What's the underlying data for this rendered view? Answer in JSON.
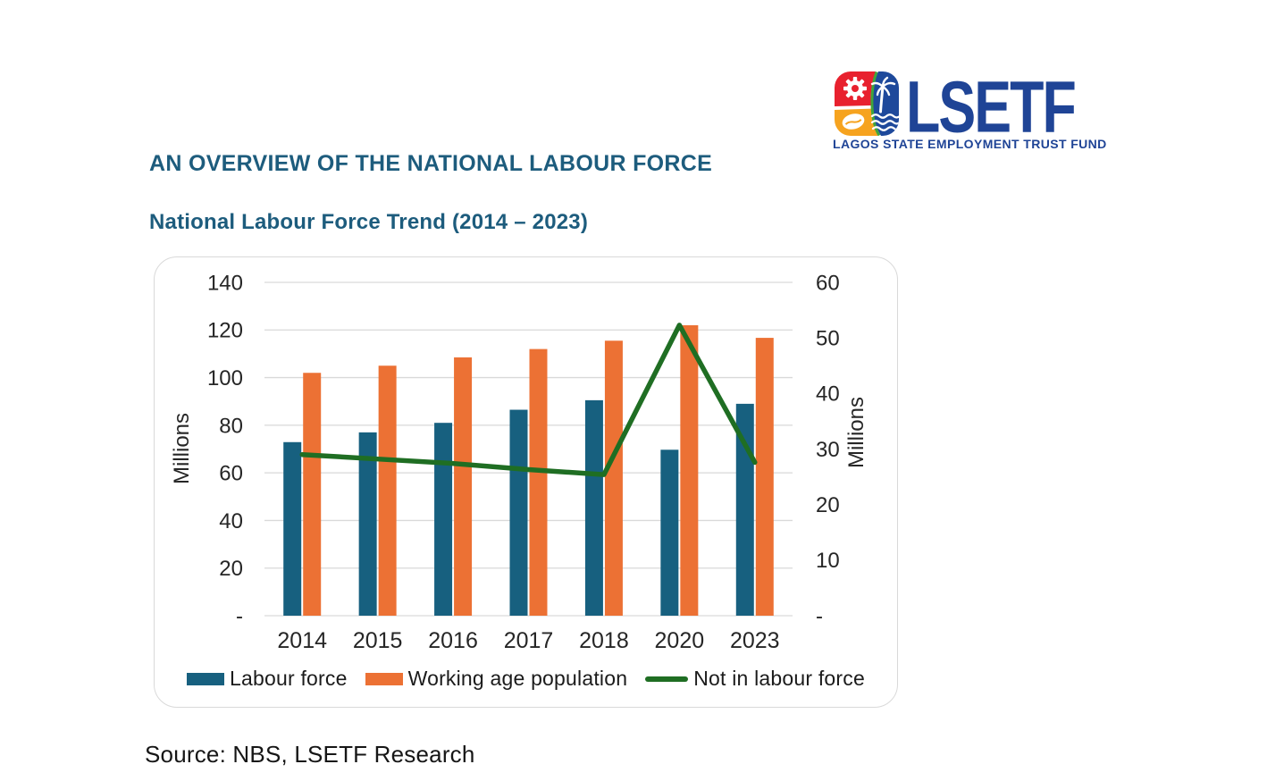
{
  "page": {
    "title": "AN OVERVIEW OF THE NATIONAL LABOUR FORCE",
    "source": "Source: NBS, LSETF Research"
  },
  "logo": {
    "acronym": "LSETF",
    "tagline_part1": "LAGOS STATE ",
    "tagline_part2": "EMPLOYMENT",
    "tagline_part3": " TRUST FUND",
    "colors": {
      "navy": "#1f4496",
      "red": "#e8212e",
      "orange": "#f6a31f",
      "green": "#3fa53c",
      "mark_blue": "#1e499b"
    }
  },
  "chart_data": {
    "type": "bar+line (dual axis combo)",
    "title": "National Labour Force Trend (2014 – 2023)",
    "categories": [
      "2014",
      "2015",
      "2016",
      "2017",
      "2018",
      "2020",
      "2023"
    ],
    "series": [
      {
        "name": "Labour force",
        "type": "bar",
        "axis": "left",
        "color": "#17607f",
        "values": [
          72.9,
          77.0,
          81.0,
          86.5,
          90.5,
          69.7,
          89.0
        ]
      },
      {
        "name": "Working age population",
        "type": "bar",
        "axis": "left",
        "color": "#ec7134",
        "values": [
          102.0,
          105.0,
          108.5,
          112.0,
          115.5,
          122.0,
          116.7
        ]
      },
      {
        "name": "Not in labour force",
        "type": "line",
        "axis": "right",
        "color": "#1f6e23",
        "values": [
          29.0,
          28.2,
          27.4,
          26.3,
          25.4,
          52.3,
          27.6
        ]
      }
    ],
    "left_axis": {
      "title": "Millions",
      "min": 0,
      "max": 140,
      "step": 20,
      "ticks": [
        "140",
        "120",
        "100",
        "80",
        "60",
        "40",
        "20",
        "-"
      ]
    },
    "right_axis": {
      "title": "Millions",
      "min": 0,
      "max": 60,
      "step": 10,
      "ticks": [
        "60",
        "50",
        "40",
        "30",
        "20",
        "10",
        "-"
      ]
    },
    "grid": true,
    "gridline_color": "#d9d9d9",
    "tick_text_color": "#262626",
    "legend_position": "bottom"
  }
}
